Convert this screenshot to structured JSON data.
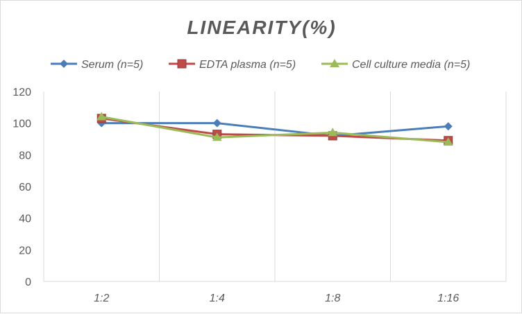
{
  "chart_data": {
    "type": "line",
    "title": "LINEARITY(%)",
    "categories": [
      "1:2",
      "1:4",
      "1:8",
      "1:16"
    ],
    "ylim": [
      0,
      120
    ],
    "yticks": [
      0,
      20,
      40,
      60,
      80,
      100,
      120
    ],
    "grid": "vertical",
    "legend_position": "top",
    "series": [
      {
        "name": "Serum (n=5)",
        "values": [
          100,
          100,
          92,
          98
        ],
        "color": "#4a7ebb",
        "marker": "diamond"
      },
      {
        "name": "EDTA plasma (n=5)",
        "values": [
          103,
          93,
          92,
          89
        ],
        "color": "#be4b48",
        "marker": "square"
      },
      {
        "name": "Cell culture media (n=5)",
        "values": [
          104,
          91,
          94,
          88
        ],
        "color": "#9bbb59",
        "marker": "triangle"
      }
    ]
  }
}
